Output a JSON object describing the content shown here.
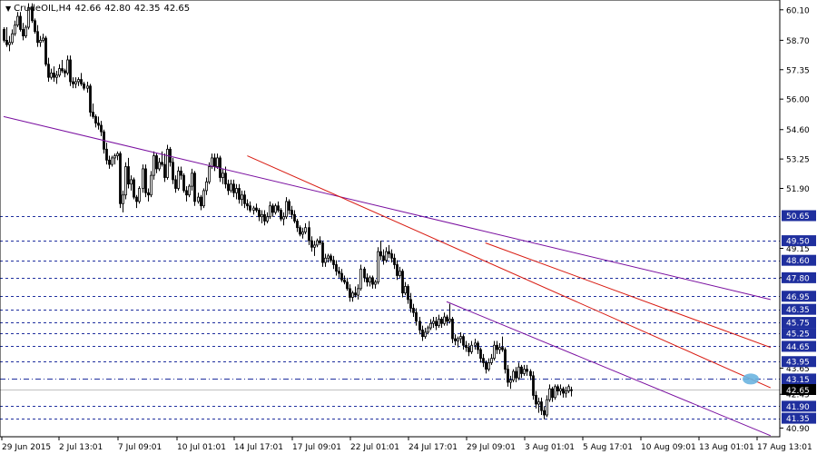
{
  "header": {
    "symbol": "CrudeOIL,H4",
    "open": "42.66",
    "high": "42.80",
    "low": "42.35",
    "close": "42.65"
  },
  "colors": {
    "level_line": "#1f2f9e",
    "level_label_bg": "#1f2f9e",
    "level_label_text": "#ffffff",
    "price_label_bg": "#000000",
    "channel_purple": "#7a10a0",
    "trend_red": "#d81a10",
    "candle": "#000000",
    "highlight": "#6ab4e0"
  },
  "chart_data": {
    "type": "candlestick",
    "yaxis": {
      "range": [
        40.5,
        60.55
      ],
      "ticks": [
        "60.10",
        "58.70",
        "57.35",
        "56.00",
        "54.60",
        "53.25",
        "51.90",
        "49.15",
        "47.80",
        "43.65",
        "42.45",
        "40.90"
      ]
    },
    "xaxis": {
      "ticks": [
        "29 Jun 2015",
        "2 Jul 13:01",
        "7 Jul 09:01",
        "10 Jul 01:01",
        "14 Jul 17:01",
        "17 Jul 09:01",
        "22 Jul 01:01",
        "24 Jul 17:01",
        "29 Jul 09:01",
        "3 Aug 01:01",
        "5 Aug 17:01",
        "10 Aug 09:01",
        "13 Aug 01:01",
        "17 Aug 13:01"
      ]
    },
    "levels": [
      {
        "value": 50.65,
        "label": "50.65",
        "style": "dashed"
      },
      {
        "value": 49.5,
        "label": "49.50",
        "style": "dashed"
      },
      {
        "value": 48.6,
        "label": "48.60",
        "style": "dashed"
      },
      {
        "value": 47.8,
        "label": "47.80",
        "style": "dashed"
      },
      {
        "value": 46.95,
        "label": "46.95",
        "style": "dashed"
      },
      {
        "value": 46.35,
        "label": "46.35",
        "style": "dashed"
      },
      {
        "value": 45.75,
        "label": "45.75",
        "style": "dashed"
      },
      {
        "value": 45.25,
        "label": "45.25",
        "style": "dashed"
      },
      {
        "value": 44.65,
        "label": "44.65",
        "style": "dashed"
      },
      {
        "value": 43.95,
        "label": "43.95",
        "style": "dashed"
      },
      {
        "value": 43.15,
        "label": "43.15",
        "style": "dashdot"
      },
      {
        "value": 41.9,
        "label": "41.90",
        "style": "dashed"
      },
      {
        "value": 41.35,
        "label": "41.35",
        "style": "dashed"
      }
    ],
    "current_price": {
      "value": 42.65,
      "label": "42.65"
    },
    "trendlines": [
      {
        "color": "purple",
        "from": [
          0,
          55.2
        ],
        "to": [
          277,
          46.8
        ]
      },
      {
        "color": "purple",
        "from": [
          160,
          46.7
        ],
        "to": [
          277,
          40.55
        ]
      },
      {
        "color": "red",
        "from": [
          88,
          53.4
        ],
        "to": [
          277,
          42.75
        ]
      },
      {
        "color": "red",
        "from": [
          174,
          49.4
        ],
        "to": [
          277,
          44.6
        ]
      }
    ],
    "candles": [
      [
        59.2,
        59.3,
        58.6,
        58.7
      ],
      [
        58.7,
        59.3,
        58.4,
        58.5
      ],
      [
        58.5,
        58.9,
        58.2,
        58.6
      ],
      [
        58.6,
        59.2,
        58.5,
        59.0
      ],
      [
        59.0,
        59.6,
        58.9,
        59.4
      ],
      [
        59.4,
        60.0,
        59.3,
        59.8
      ],
      [
        59.8,
        60.0,
        59.1,
        59.2
      ],
      [
        59.2,
        59.5,
        58.7,
        58.9
      ],
      [
        58.9,
        59.4,
        58.8,
        59.3
      ],
      [
        59.3,
        60.4,
        59.2,
        60.2
      ],
      [
        60.2,
        60.4,
        59.5,
        59.6
      ],
      [
        59.6,
        59.7,
        59.0,
        59.1
      ],
      [
        59.1,
        59.4,
        58.4,
        58.6
      ],
      [
        58.6,
        58.9,
        58.4,
        58.7
      ],
      [
        58.7,
        59.0,
        58.6,
        58.8
      ],
      [
        58.8,
        58.9,
        57.5,
        57.6
      ],
      [
        57.6,
        57.9,
        56.8,
        57.0
      ],
      [
        57.0,
        57.4,
        56.9,
        57.2
      ],
      [
        57.2,
        57.5,
        56.8,
        57.0
      ],
      [
        57.0,
        57.3,
        56.7,
        57.1
      ],
      [
        57.1,
        57.6,
        57.0,
        57.4
      ],
      [
        57.4,
        57.8,
        57.2,
        57.3
      ],
      [
        57.3,
        57.4,
        57.0,
        57.2
      ],
      [
        57.2,
        58.0,
        57.1,
        57.8
      ],
      [
        57.8,
        58.0,
        56.6,
        56.8
      ],
      [
        56.8,
        57.0,
        56.5,
        56.7
      ],
      [
        56.7,
        57.0,
        56.5,
        56.8
      ],
      [
        56.8,
        57.0,
        56.6,
        56.9
      ],
      [
        56.9,
        57.2,
        56.6,
        56.7
      ],
      [
        56.7,
        56.8,
        56.4,
        56.5
      ],
      [
        56.5,
        56.8,
        56.3,
        56.6
      ],
      [
        56.6,
        56.7,
        55.2,
        55.4
      ],
      [
        55.4,
        55.8,
        55.1,
        55.2
      ],
      [
        55.2,
        55.3,
        54.7,
        54.9
      ],
      [
        54.9,
        55.2,
        54.6,
        54.8
      ],
      [
        54.8,
        55.0,
        54.3,
        54.5
      ],
      [
        54.5,
        54.6,
        53.5,
        53.7
      ],
      [
        53.7,
        54.0,
        53.0,
        53.2
      ],
      [
        53.2,
        53.4,
        52.8,
        53.0
      ],
      [
        53.0,
        53.4,
        52.9,
        53.3
      ],
      [
        53.3,
        53.5,
        53.0,
        53.4
      ],
      [
        53.4,
        53.6,
        53.2,
        53.5
      ],
      [
        53.5,
        53.6,
        51.0,
        51.2
      ],
      [
        51.2,
        51.8,
        50.8,
        51.6
      ],
      [
        51.6,
        53.1,
        51.4,
        52.9
      ],
      [
        52.9,
        53.3,
        51.9,
        52.1
      ],
      [
        52.1,
        52.5,
        51.8,
        52.3
      ],
      [
        52.3,
        52.4,
        51.4,
        51.5
      ],
      [
        51.5,
        51.6,
        51.0,
        51.3
      ],
      [
        51.3,
        52.0,
        51.2,
        51.9
      ],
      [
        51.9,
        53.0,
        51.7,
        52.8
      ],
      [
        52.8,
        53.0,
        51.5,
        51.7
      ],
      [
        51.7,
        51.9,
        51.3,
        51.6
      ],
      [
        51.6,
        52.7,
        51.5,
        52.5
      ],
      [
        52.5,
        53.6,
        52.3,
        53.4
      ],
      [
        53.4,
        53.5,
        52.6,
        52.8
      ],
      [
        52.8,
        53.3,
        52.7,
        53.1
      ],
      [
        53.1,
        53.6,
        52.9,
        53.0
      ],
      [
        53.0,
        53.5,
        52.2,
        52.4
      ],
      [
        52.4,
        53.9,
        52.3,
        53.7
      ],
      [
        53.7,
        53.8,
        52.9,
        53.1
      ],
      [
        53.1,
        53.3,
        52.1,
        52.3
      ],
      [
        52.3,
        52.5,
        51.7,
        51.9
      ],
      [
        51.9,
        52.9,
        51.8,
        52.7
      ],
      [
        52.7,
        52.9,
        52.3,
        52.5
      ],
      [
        52.5,
        52.6,
        51.7,
        51.8
      ],
      [
        51.8,
        52.0,
        51.3,
        51.6
      ],
      [
        51.6,
        52.1,
        51.5,
        52.0
      ],
      [
        52.0,
        52.8,
        51.8,
        52.6
      ],
      [
        52.6,
        52.7,
        51.1,
        51.3
      ],
      [
        51.3,
        51.7,
        51.2,
        51.5
      ],
      [
        51.5,
        51.6,
        50.9,
        51.1
      ],
      [
        51.1,
        51.9,
        51.0,
        51.8
      ],
      [
        51.8,
        52.4,
        51.6,
        52.2
      ],
      [
        52.2,
        53.1,
        52.1,
        52.9
      ],
      [
        52.9,
        53.5,
        52.8,
        53.3
      ],
      [
        53.3,
        53.5,
        52.7,
        52.9
      ],
      [
        52.9,
        53.5,
        52.8,
        53.3
      ],
      [
        53.3,
        53.4,
        52.2,
        52.4
      ],
      [
        52.4,
        52.8,
        52.1,
        52.6
      ],
      [
        52.6,
        52.9,
        51.9,
        52.1
      ],
      [
        52.1,
        52.3,
        51.6,
        51.8
      ],
      [
        51.8,
        52.3,
        51.7,
        52.1
      ],
      [
        52.1,
        52.3,
        51.5,
        51.7
      ],
      [
        51.7,
        52.1,
        51.4,
        51.9
      ],
      [
        51.9,
        52.1,
        51.2,
        51.4
      ],
      [
        51.4,
        51.8,
        51.1,
        51.6
      ],
      [
        51.6,
        51.8,
        51.0,
        51.2
      ],
      [
        51.2,
        51.4,
        50.9,
        51.1
      ],
      [
        51.1,
        51.3,
        50.8,
        50.9
      ],
      [
        50.9,
        51.1,
        50.7,
        51.0
      ],
      [
        51.0,
        51.2,
        50.8,
        50.9
      ],
      [
        50.9,
        51.0,
        50.4,
        50.6
      ],
      [
        50.6,
        50.9,
        50.3,
        50.7
      ],
      [
        50.7,
        50.9,
        50.2,
        50.4
      ],
      [
        50.4,
        50.8,
        50.3,
        50.6
      ],
      [
        50.6,
        51.3,
        50.5,
        51.1
      ],
      [
        51.1,
        51.2,
        50.6,
        50.8
      ],
      [
        50.8,
        51.2,
        50.7,
        51.1
      ],
      [
        51.1,
        51.3,
        50.8,
        50.9
      ],
      [
        50.9,
        51.0,
        50.4,
        50.5
      ],
      [
        50.5,
        50.8,
        50.2,
        50.6
      ],
      [
        50.6,
        51.5,
        50.5,
        51.3
      ],
      [
        51.3,
        51.4,
        50.7,
        50.9
      ],
      [
        50.9,
        51.1,
        50.5,
        50.7
      ],
      [
        50.7,
        50.9,
        50.3,
        50.4
      ],
      [
        50.4,
        50.5,
        49.9,
        50.1
      ],
      [
        50.1,
        50.2,
        49.7,
        49.8
      ],
      [
        49.8,
        50.1,
        49.6,
        49.9
      ],
      [
        49.9,
        50.3,
        49.8,
        50.1
      ],
      [
        50.1,
        50.4,
        49.3,
        49.5
      ],
      [
        49.5,
        49.7,
        49.0,
        49.2
      ],
      [
        49.2,
        49.5,
        48.8,
        49.3
      ],
      [
        49.3,
        49.6,
        49.2,
        49.5
      ],
      [
        49.5,
        49.7,
        49.3,
        49.4
      ],
      [
        49.4,
        49.5,
        48.3,
        48.5
      ],
      [
        48.5,
        48.9,
        48.3,
        48.7
      ],
      [
        48.7,
        48.9,
        48.5,
        48.8
      ],
      [
        48.8,
        48.9,
        48.5,
        48.6
      ],
      [
        48.6,
        48.8,
        48.2,
        48.4
      ],
      [
        48.4,
        48.6,
        47.9,
        48.1
      ],
      [
        48.1,
        48.3,
        47.8,
        48.0
      ],
      [
        48.0,
        48.2,
        47.6,
        47.7
      ],
      [
        47.7,
        47.9,
        47.5,
        47.6
      ],
      [
        47.6,
        47.8,
        47.2,
        47.3
      ],
      [
        47.3,
        47.5,
        46.7,
        46.9
      ],
      [
        46.9,
        47.2,
        46.7,
        47.1
      ],
      [
        47.1,
        47.4,
        46.9,
        47.0
      ],
      [
        47.0,
        47.5,
        46.8,
        47.3
      ],
      [
        47.3,
        48.4,
        47.2,
        48.2
      ],
      [
        48.2,
        48.3,
        47.6,
        47.8
      ],
      [
        47.8,
        48.0,
        47.4,
        47.6
      ],
      [
        47.6,
        47.9,
        47.4,
        47.8
      ],
      [
        47.8,
        47.9,
        47.3,
        47.5
      ],
      [
        47.5,
        47.7,
        47.3,
        47.6
      ],
      [
        47.6,
        49.2,
        47.5,
        49.0
      ],
      [
        49.0,
        49.5,
        48.6,
        48.8
      ],
      [
        48.8,
        49.1,
        48.4,
        48.6
      ],
      [
        48.6,
        49.2,
        48.5,
        49.0
      ],
      [
        49.0,
        49.3,
        48.7,
        48.9
      ],
      [
        48.9,
        49.1,
        48.5,
        48.7
      ],
      [
        48.7,
        48.9,
        48.2,
        48.4
      ],
      [
        48.4,
        48.6,
        47.7,
        47.9
      ],
      [
        47.9,
        48.3,
        47.8,
        48.1
      ],
      [
        48.1,
        48.2,
        46.9,
        47.1
      ],
      [
        47.1,
        47.6,
        47.0,
        47.4
      ],
      [
        47.4,
        47.5,
        46.6,
        46.8
      ],
      [
        46.8,
        47.1,
        46.2,
        46.4
      ],
      [
        46.4,
        46.6,
        46.0,
        46.2
      ],
      [
        46.2,
        46.4,
        45.6,
        45.8
      ],
      [
        45.8,
        46.0,
        45.2,
        45.4
      ],
      [
        45.4,
        45.6,
        44.9,
        45.1
      ],
      [
        45.1,
        45.5,
        45.0,
        45.3
      ],
      [
        45.3,
        45.6,
        45.2,
        45.5
      ],
      [
        45.5,
        45.9,
        45.4,
        45.7
      ],
      [
        45.7,
        46.0,
        45.5,
        45.8
      ],
      [
        45.8,
        46.0,
        45.4,
        45.6
      ],
      [
        45.6,
        46.1,
        45.5,
        45.9
      ],
      [
        45.9,
        46.0,
        45.5,
        45.7
      ],
      [
        45.7,
        46.2,
        45.6,
        46.0
      ],
      [
        46.0,
        46.1,
        45.6,
        45.8
      ],
      [
        45.8,
        46.6,
        45.7,
        45.9
      ],
      [
        45.9,
        46.0,
        44.8,
        45.0
      ],
      [
        45.0,
        45.2,
        44.7,
        44.9
      ],
      [
        44.9,
        45.1,
        44.6,
        45.0
      ],
      [
        45.0,
        45.3,
        44.8,
        45.1
      ],
      [
        45.1,
        45.2,
        44.5,
        44.7
      ],
      [
        44.7,
        44.9,
        44.4,
        44.6
      ],
      [
        44.6,
        44.8,
        44.2,
        44.4
      ],
      [
        44.4,
        44.9,
        44.3,
        44.7
      ],
      [
        44.7,
        45.0,
        44.5,
        44.8
      ],
      [
        44.8,
        44.9,
        44.3,
        44.5
      ],
      [
        44.5,
        44.6,
        43.9,
        44.1
      ],
      [
        44.1,
        44.3,
        43.7,
        43.9
      ],
      [
        43.9,
        44.0,
        43.4,
        43.6
      ],
      [
        43.6,
        44.1,
        43.5,
        43.9
      ],
      [
        43.9,
        44.3,
        43.8,
        44.1
      ],
      [
        44.1,
        44.9,
        44.0,
        44.7
      ],
      [
        44.7,
        44.9,
        44.3,
        44.5
      ],
      [
        44.5,
        44.8,
        44.3,
        44.6
      ],
      [
        44.6,
        45.1,
        44.4,
        44.5
      ],
      [
        44.5,
        44.6,
        43.4,
        43.6
      ],
      [
        43.6,
        43.8,
        42.8,
        43.0
      ],
      [
        43.0,
        43.3,
        42.7,
        43.1
      ],
      [
        43.1,
        43.6,
        43.0,
        43.5
      ],
      [
        43.5,
        43.7,
        43.0,
        43.2
      ],
      [
        43.2,
        43.9,
        43.1,
        43.7
      ],
      [
        43.7,
        43.8,
        43.2,
        43.4
      ],
      [
        43.4,
        43.8,
        43.3,
        43.6
      ],
      [
        43.6,
        43.8,
        43.3,
        43.5
      ],
      [
        43.5,
        43.6,
        43.1,
        43.3
      ],
      [
        43.3,
        43.5,
        42.2,
        42.4
      ],
      [
        42.4,
        42.6,
        41.8,
        42.0
      ],
      [
        42.0,
        42.3,
        41.6,
        42.1
      ],
      [
        42.1,
        42.3,
        41.5,
        41.7
      ],
      [
        41.7,
        41.9,
        41.3,
        41.5
      ],
      [
        41.5,
        42.4,
        41.4,
        42.2
      ],
      [
        42.2,
        42.9,
        42.1,
        42.7
      ],
      [
        42.7,
        42.8,
        42.1,
        42.3
      ],
      [
        42.3,
        42.9,
        42.2,
        42.8
      ],
      [
        42.8,
        42.9,
        42.4,
        42.6
      ],
      [
        42.6,
        42.9,
        42.4,
        42.7
      ],
      [
        42.7,
        42.8,
        42.3,
        42.5
      ],
      [
        42.5,
        42.8,
        42.3,
        42.6
      ],
      [
        42.6,
        42.9,
        42.5,
        42.8
      ],
      [
        42.66,
        42.8,
        42.35,
        42.65
      ]
    ]
  }
}
